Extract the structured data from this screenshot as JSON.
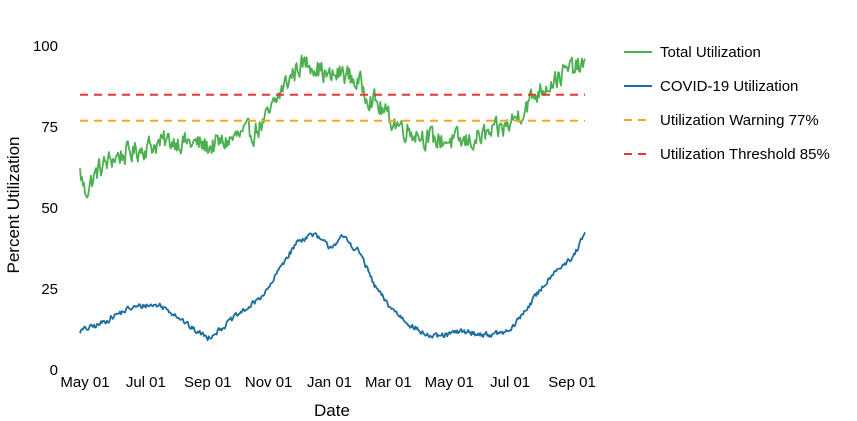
{
  "chart_data": {
    "type": "line",
    "xlabel": "Date",
    "ylabel": "Percent Utilization",
    "x_range": [
      "2020-04-26",
      "2021-09-14"
    ],
    "ylim": [
      0,
      105
    ],
    "y_ticks": [
      0,
      25,
      50,
      75,
      100
    ],
    "x_ticks": [
      {
        "date": "2020-05-01",
        "label": "May 01"
      },
      {
        "date": "2020-07-01",
        "label": "Jul 01"
      },
      {
        "date": "2020-09-01",
        "label": "Sep 01"
      },
      {
        "date": "2020-11-01",
        "label": "Nov 01"
      },
      {
        "date": "2021-01-01",
        "label": "Jan 01"
      },
      {
        "date": "2021-03-01",
        "label": "Mar 01"
      },
      {
        "date": "2021-05-01",
        "label": "May 01"
      },
      {
        "date": "2021-07-01",
        "label": "Jul 01"
      },
      {
        "date": "2021-09-01",
        "label": "Sep 01"
      }
    ],
    "grid": false,
    "legend_position": "right",
    "series": [
      {
        "name": "Total Utilization",
        "color": "#4caf50",
        "style": "solid",
        "x": [
          "2020-04-26",
          "2020-05-01",
          "2020-05-15",
          "2020-06-01",
          "2020-06-15",
          "2020-07-01",
          "2020-07-15",
          "2020-08-01",
          "2020-08-15",
          "2020-09-01",
          "2020-09-15",
          "2020-10-01",
          "2020-10-15",
          "2020-11-01",
          "2020-11-15",
          "2020-12-01",
          "2020-12-15",
          "2021-01-01",
          "2021-01-15",
          "2021-02-01",
          "2021-02-15",
          "2021-03-01",
          "2021-03-15",
          "2021-04-01",
          "2021-04-15",
          "2021-05-01",
          "2021-05-15",
          "2021-06-01",
          "2021-06-15",
          "2021-07-01",
          "2021-07-15",
          "2021-08-01",
          "2021-08-15",
          "2021-09-01",
          "2021-09-14"
        ],
        "y": [
          61,
          55,
          62,
          66,
          67,
          69,
          70,
          71,
          70,
          69,
          70,
          72,
          73,
          78,
          87,
          94,
          95,
          90,
          92,
          88,
          83,
          78,
          75,
          73,
          71,
          71,
          70,
          72,
          73,
          76,
          81,
          87,
          90,
          93,
          94
        ]
      },
      {
        "name": "COVID-19 Utilization",
        "color": "#1b6e9e",
        "style": "solid",
        "x": [
          "2020-04-26",
          "2020-05-15",
          "2020-06-01",
          "2020-06-15",
          "2020-07-01",
          "2020-07-15",
          "2020-08-01",
          "2020-08-15",
          "2020-09-01",
          "2020-09-15",
          "2020-10-01",
          "2020-10-15",
          "2020-11-01",
          "2020-11-15",
          "2020-12-01",
          "2020-12-15",
          "2021-01-01",
          "2021-01-15",
          "2021-02-01",
          "2021-02-15",
          "2021-03-01",
          "2021-03-15",
          "2021-04-01",
          "2021-04-15",
          "2021-05-01",
          "2021-05-15",
          "2021-06-01",
          "2021-06-15",
          "2021-07-01",
          "2021-07-15",
          "2021-08-01",
          "2021-08-15",
          "2021-09-01",
          "2021-09-14"
        ],
        "y": [
          12,
          14,
          17,
          19,
          20,
          20,
          17,
          13,
          10,
          13,
          17,
          20,
          25,
          33,
          40,
          42,
          38,
          41,
          36,
          26,
          20,
          16,
          12,
          10,
          11,
          12,
          11,
          11,
          12,
          18,
          25,
          31,
          34,
          42
        ]
      },
      {
        "name": "Utilization Warning 77%",
        "color": "#f5a623",
        "style": "dashed",
        "x": [
          "2020-04-26",
          "2021-09-14"
        ],
        "y": [
          77,
          77
        ]
      },
      {
        "name": "Utilization Threshold 85%",
        "color": "#e53935",
        "style": "dashed",
        "x": [
          "2020-04-26",
          "2021-09-14"
        ],
        "y": [
          85,
          85
        ]
      }
    ]
  }
}
